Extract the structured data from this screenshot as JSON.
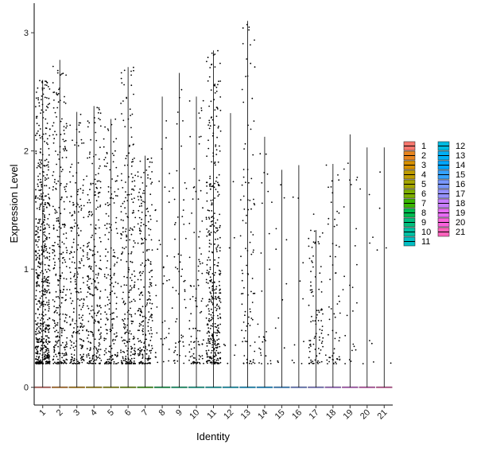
{
  "chart_data": {
    "type": "violin",
    "xlabel": "Identity",
    "ylabel": "Expression Level",
    "ylim": [
      -0.15,
      3.25
    ],
    "yticks": [
      0,
      1,
      2,
      3
    ],
    "categories": [
      "1",
      "2",
      "3",
      "4",
      "5",
      "6",
      "7",
      "8",
      "9",
      "10",
      "11",
      "12",
      "13",
      "14",
      "15",
      "16",
      "17",
      "18",
      "19",
      "20",
      "21"
    ],
    "colors": [
      "#F8766D",
      "#E8851E",
      "#D58F00",
      "#BE9C00",
      "#A3A500",
      "#7CAE00",
      "#39B600",
      "#00BB4E",
      "#00BF7D",
      "#00C1A3",
      "#00BFC4",
      "#00BAE0",
      "#00B0F6",
      "#00A5FF",
      "#35A2FF",
      "#7997FF",
      "#9590FF",
      "#C77CFF",
      "#E76BF3",
      "#FA62DB",
      "#FF62BC"
    ],
    "max_values": [
      2.6,
      2.77,
      2.33,
      2.38,
      2.27,
      2.71,
      1.96,
      2.46,
      2.66,
      2.46,
      2.85,
      2.32,
      3.1,
      2.12,
      1.84,
      1.88,
      1.33,
      1.89,
      2.14,
      2.03,
      2.03
    ],
    "point_counts": [
      600,
      300,
      220,
      250,
      180,
      260,
      240,
      40,
      60,
      100,
      400,
      8,
      100,
      30,
      12,
      10,
      90,
      60,
      25,
      8,
      5
    ],
    "legend": {
      "position": "right",
      "columns": 2
    }
  }
}
